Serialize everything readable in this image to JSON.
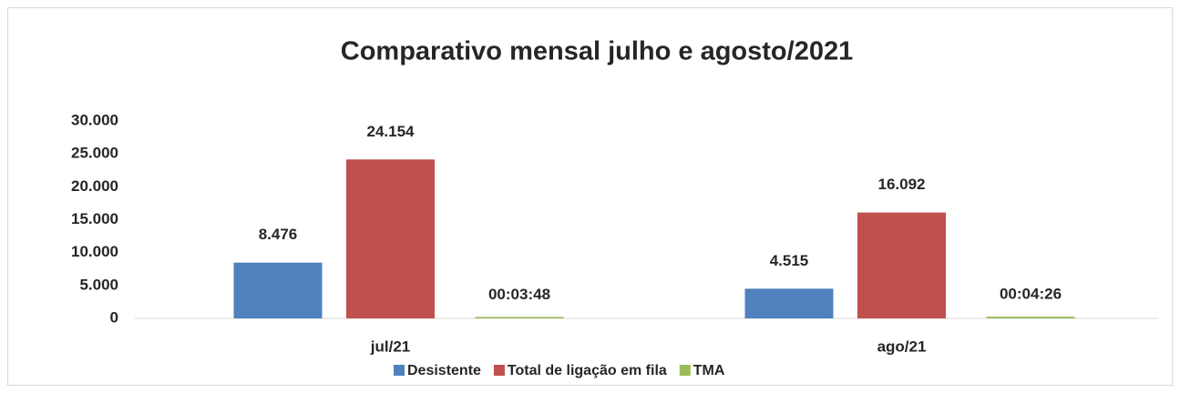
{
  "chart_data": {
    "type": "bar",
    "title": "Comparativo mensal julho e agosto/2021",
    "categories": [
      "jul/21",
      "ago/21"
    ],
    "series": [
      {
        "name": "Desistente",
        "color": "#4f81bd",
        "values": [
          8476,
          4515
        ],
        "value_labels": [
          "8.476",
          "4.515"
        ]
      },
      {
        "name": "Total de ligação em fila",
        "color": "#c0504d",
        "values": [
          24154,
          16092
        ],
        "value_labels": [
          "24.154",
          "16.092"
        ]
      },
      {
        "name": "TMA",
        "color": "#9bbb59",
        "values": [
          228,
          266
        ],
        "value_labels": [
          "00:03:48",
          "00:04:26"
        ]
      }
    ],
    "ylim": [
      0,
      30000
    ],
    "yticks": [
      0,
      {
        "value": 5000,
        "label": "5.000"
      },
      {
        "value": 10000,
        "label": "10.000"
      },
      {
        "value": 15000,
        "label": "15.000"
      },
      {
        "value": 20000,
        "label": "20.000"
      },
      {
        "value": 25000,
        "label": "25.000"
      },
      {
        "value": 30000,
        "label": "30.000"
      }
    ],
    "grid": false,
    "legend": "bottom"
  }
}
